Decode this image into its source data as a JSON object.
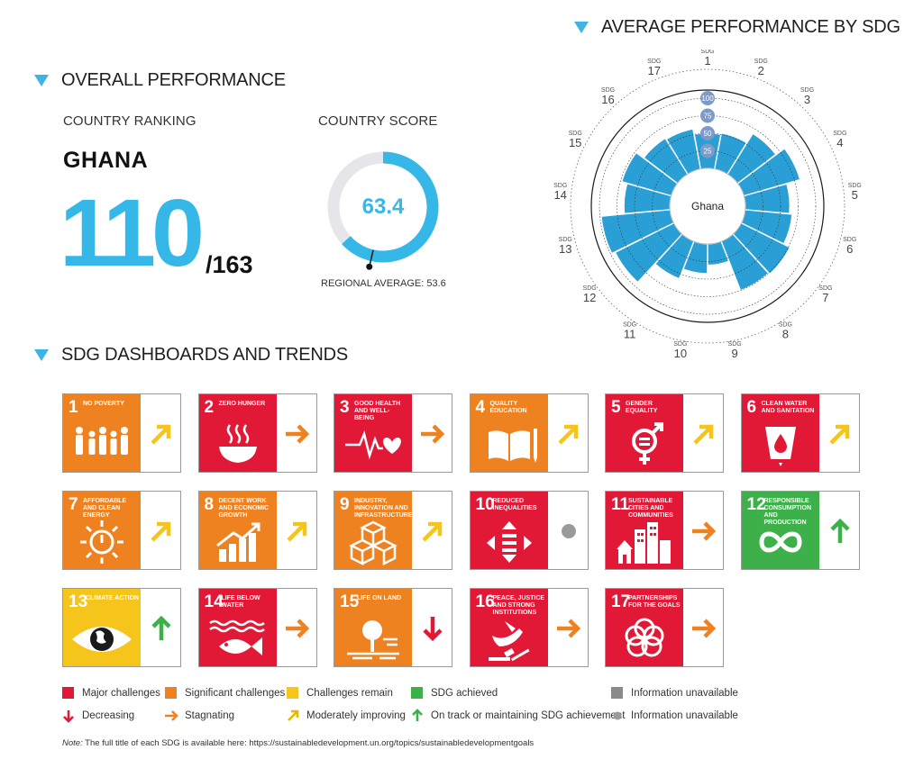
{
  "overall": {
    "heading": "OVERALL PERFORMANCE",
    "ranking_label": "COUNTRY RANKING",
    "country": "GHANA",
    "rank": "110",
    "rank_total": "/163",
    "score_label": "COUNTRY SCORE",
    "score": "63.4",
    "score_value": 63.4,
    "regional_average_label": "REGIONAL AVERAGE: 53.6",
    "regional_average_value": 53.6,
    "colors": {
      "accent": "#35b8e8",
      "track": "#e6e6ea"
    }
  },
  "chart_data": {
    "type": "polar-bar",
    "title": "AVERAGE PERFORMANCE BY SDG",
    "center_label": "Ghana",
    "ring_labels": [
      "25",
      "50",
      "75",
      "100"
    ],
    "rlim": [
      0,
      100
    ],
    "categories": [
      "SDG 1",
      "SDG 2",
      "SDG 3",
      "SDG 4",
      "SDG 5",
      "SDG 6",
      "SDG 7",
      "SDG 8",
      "SDG 9",
      "SDG 10",
      "SDG 11",
      "SDG 12",
      "SDG 13",
      "SDG 14",
      "SDG 15",
      "SDG 16",
      "SDG 17"
    ],
    "category_prefix": "SDG",
    "category_numbers": [
      "1",
      "2",
      "3",
      "4",
      "5",
      "6",
      "7",
      "8",
      "9",
      "10",
      "11",
      "12",
      "13",
      "14",
      "15",
      "16",
      "17"
    ],
    "values": [
      50,
      52,
      68,
      83,
      63,
      67,
      77,
      75,
      30,
      42,
      57,
      93,
      98,
      65,
      73,
      60,
      58
    ],
    "color": "#2a9fd6"
  },
  "dashboard": {
    "heading": "SDG DASHBOARDS AND TRENDS",
    "tiles": [
      {
        "num": "1",
        "title": "NO POVERTY",
        "color": "#ef8220",
        "icon": "family-icon",
        "trend": "up-right"
      },
      {
        "num": "2",
        "title": "ZERO HUNGER",
        "color": "#e11937",
        "icon": "bowl-icon",
        "trend": "right"
      },
      {
        "num": "3",
        "title": "GOOD HEALTH AND WELL-BEING",
        "color": "#e11937",
        "icon": "heartbeat-icon",
        "trend": "right"
      },
      {
        "num": "4",
        "title": "QUALITY EDUCATION",
        "color": "#ef8220",
        "icon": "book-icon",
        "trend": "up-right"
      },
      {
        "num": "5",
        "title": "GENDER EQUALITY",
        "color": "#e11937",
        "icon": "gender-icon",
        "trend": "up-right"
      },
      {
        "num": "6",
        "title": "CLEAN WATER AND SANITATION",
        "color": "#e11937",
        "icon": "water-drop-icon",
        "trend": "up-right"
      },
      {
        "num": "7",
        "title": "AFFORDABLE AND CLEAN ENERGY",
        "color": "#ef8220",
        "icon": "power-sun-icon",
        "trend": "up-right"
      },
      {
        "num": "8",
        "title": "DECENT WORK AND ECONOMIC GROWTH",
        "color": "#ef8220",
        "icon": "growth-chart-icon",
        "trend": "up-right"
      },
      {
        "num": "9",
        "title": "INDUSTRY, INNOVATION AND INFRASTRUCTURE",
        "color": "#ef8220",
        "icon": "cubes-icon",
        "trend": "up-right"
      },
      {
        "num": "10",
        "title": "REDUCED INEQUALITIES",
        "color": "#e11937",
        "icon": "equality-icon",
        "trend": "dot"
      },
      {
        "num": "11",
        "title": "SUSTAINABLE CITIES AND COMMUNITIES",
        "color": "#e11937",
        "icon": "city-icon",
        "trend": "right"
      },
      {
        "num": "12",
        "title": "RESPONSIBLE CONSUMPTION AND PRODUCTION",
        "color": "#3eb049",
        "icon": "infinity-icon",
        "trend": "up"
      },
      {
        "num": "13",
        "title": "CLIMATE ACTION",
        "color": "#f6c51b",
        "icon": "eye-globe-icon",
        "trend": "up"
      },
      {
        "num": "14",
        "title": "LIFE BELOW WATER",
        "color": "#e11937",
        "icon": "fish-icon",
        "trend": "right"
      },
      {
        "num": "15",
        "title": "LIFE ON LAND",
        "color": "#ef8220",
        "icon": "tree-icon",
        "trend": "down"
      },
      {
        "num": "16",
        "title": "PEACE, JUSTICE AND STRONG INSTITUTIONS",
        "color": "#e11937",
        "icon": "dove-gavel-icon",
        "trend": "right"
      },
      {
        "num": "17",
        "title": "PARTNERSHIPS FOR THE GOALS",
        "color": "#e11937",
        "icon": "rings-icon",
        "trend": "right"
      }
    ]
  },
  "legend": {
    "major": {
      "label": "Major challenges",
      "color": "#e11937"
    },
    "significant": {
      "label": "Significant challenges",
      "color": "#ef8220"
    },
    "remain": {
      "label": "Challenges remain",
      "color": "#f6c51b"
    },
    "achieved": {
      "label": "SDG achieved",
      "color": "#3eb049"
    },
    "unavailable_sq": {
      "label": "Information unavailable",
      "color": "#8a8a8a"
    },
    "decreasing": {
      "label": "Decreasing",
      "color": "#e11937"
    },
    "stagnating": {
      "label": "Stagnating",
      "color": "#ef8220"
    },
    "improving": {
      "label": "Moderately improving",
      "color": "#f6c51b"
    },
    "on_track": {
      "label": "On track or maintaining SDG achievement",
      "color": "#3eb049"
    },
    "unavailable_dot": {
      "label": "Information unavailable",
      "color": "#9a9a9a"
    }
  },
  "note": {
    "prefix": "Note:",
    "text": " The full title of each SDG is available here: https://sustainabledevelopment.un.org/topics/sustainabledevelopmentgoals"
  }
}
